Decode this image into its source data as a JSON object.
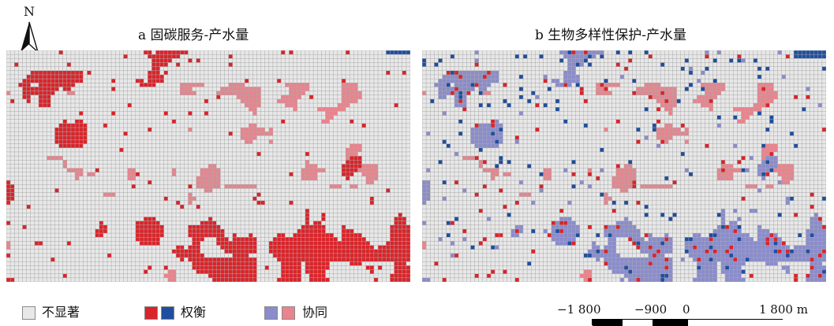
{
  "north": {
    "label": "N"
  },
  "panels": [
    {
      "title": "a 固碳服务-产水量"
    },
    {
      "title": "b 生物多样性保护-产水量"
    }
  ],
  "legend": {
    "items": [
      {
        "label": "不显著",
        "colors": [
          "#e8e8e8"
        ]
      },
      {
        "label": "权衡",
        "colors": [
          "#d9242a",
          "#1f4e9e"
        ]
      },
      {
        "label": "协同",
        "colors": [
          "#8a8ccc",
          "#e8848d"
        ]
      }
    ]
  },
  "scalebar": {
    "ticks": [
      "−1 800",
      "−900",
      "0",
      "1 800 m"
    ]
  },
  "colors": {
    "not_significant": "#e8e8e8",
    "tradeoff_red": "#d9242a",
    "tradeoff_blue": "#1f4e9e",
    "synergy_purple": "#8a8ccc",
    "synergy_pink": "#e8848d",
    "grid_line": "#a8a8a8"
  }
}
